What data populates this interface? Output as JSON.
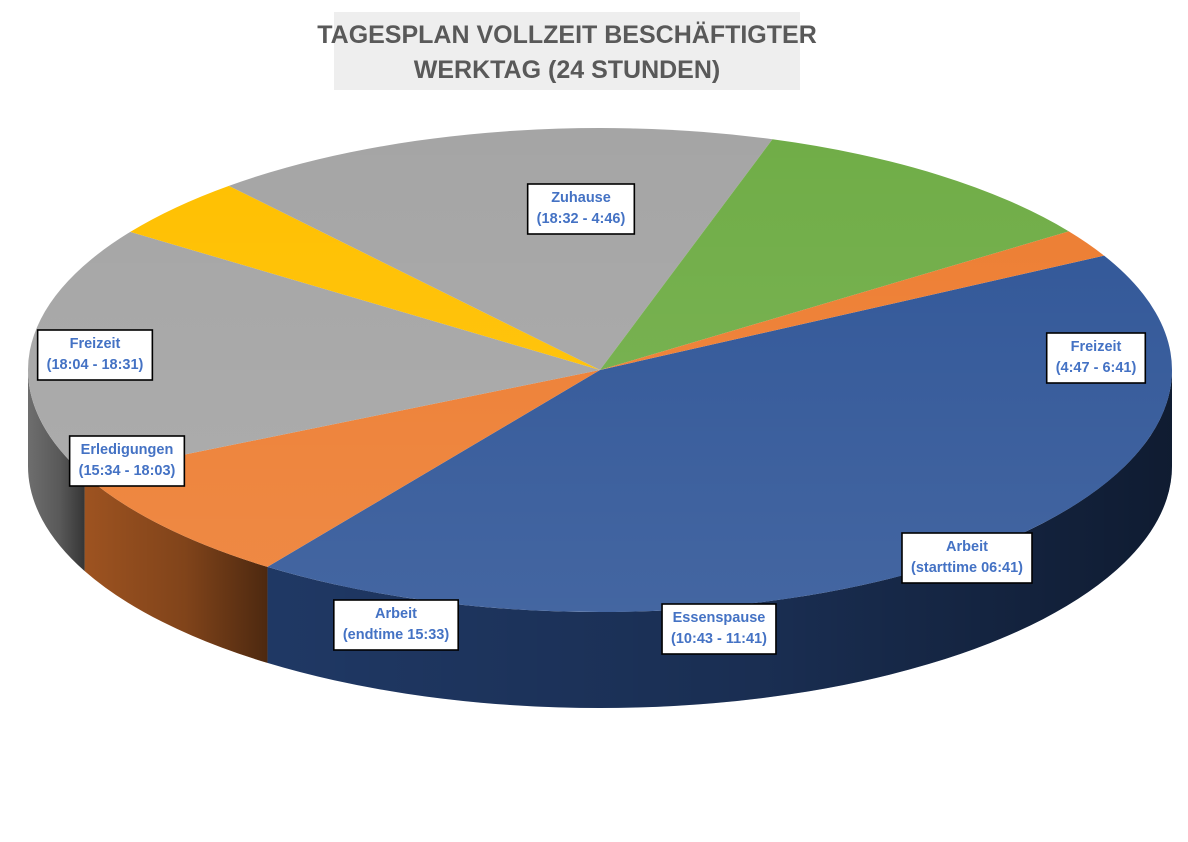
{
  "chart_data": {
    "type": "pie",
    "title": "TAGESPLAN VOLLZEIT BESCHÄFTIGTER WERKTAG (24 STUNDEN)",
    "title_lines": [
      "TAGESPLAN VOLLZEIT BESCHÄFTIGTER",
      "WERKTAG (24 STUNDEN)"
    ],
    "unit": "minutes",
    "three_d": true,
    "slices": [
      {
        "label": [
          "Zuhause",
          "(18:32 - 4:46)"
        ],
        "value": 615,
        "color": "#2f5597"
      },
      {
        "label": [
          "Freizeit",
          "(4:47 - 6:41)"
        ],
        "value": 115,
        "color": "#ed7d31"
      },
      {
        "label": [
          "Arbeit",
          "(starttime 06:41)"
        ],
        "value": 242,
        "color": "#a5a5a5"
      },
      {
        "label": [
          "Essenspause",
          "(10:43 - 11:41)"
        ],
        "value": 59,
        "color": "#ffc000"
      },
      {
        "label": [
          "Arbeit",
          "(endtime  15:33)"
        ],
        "value": 232,
        "color": "#a5a5a5"
      },
      {
        "label": [
          "Erledigungen",
          "(15:34 - 18:03)"
        ],
        "value": 150,
        "color": "#70ad47"
      },
      {
        "label": [
          "Freizeit",
          "(18:04 - 18:31)"
        ],
        "value": 27,
        "color": "#ed7d31"
      }
    ],
    "legend": "none"
  }
}
